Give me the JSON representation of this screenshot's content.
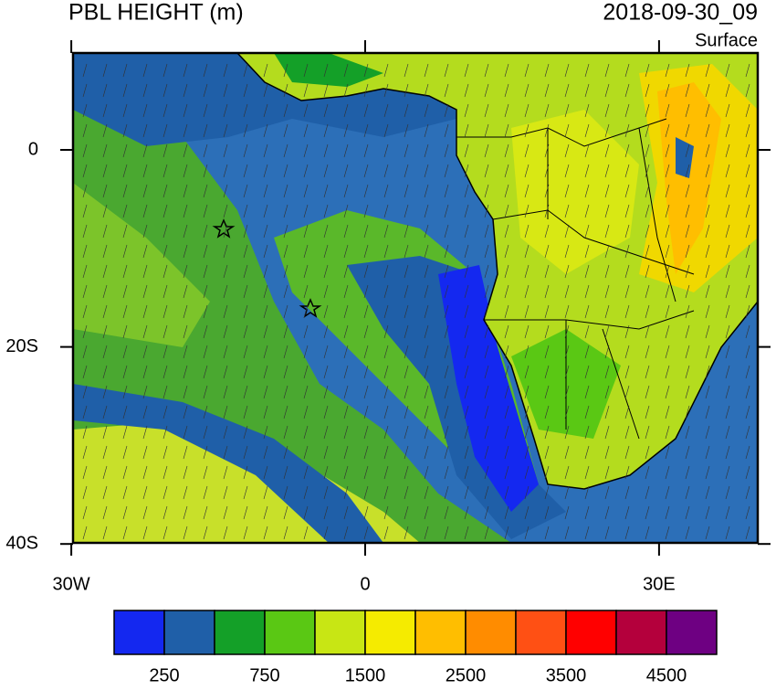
{
  "header": {
    "title": "PBL HEIGHT (m)",
    "valid_time": "2018-09-30_09",
    "level": "Surface"
  },
  "map": {
    "lat_ticks": [
      0,
      {
        "value": -20,
        "label": "20S"
      },
      {
        "value": -40,
        "label": "40S"
      }
    ],
    "lon_ticks": [
      {
        "value": -30,
        "label": "30W"
      },
      0,
      {
        "value": 30,
        "label": "30E"
      }
    ]
  },
  "colorbar": {
    "colors": [
      "#1428f0",
      "#1f5fa8",
      "#14a028",
      "#5ac814",
      "#c8e614",
      "#f5eb00",
      "#ffbe00",
      "#ff8c00",
      "#ff5014",
      "#ff0000",
      "#b4003c",
      "#6e0082"
    ],
    "labels": [
      250,
      750,
      1500,
      2500,
      3500,
      4500
    ]
  }
}
